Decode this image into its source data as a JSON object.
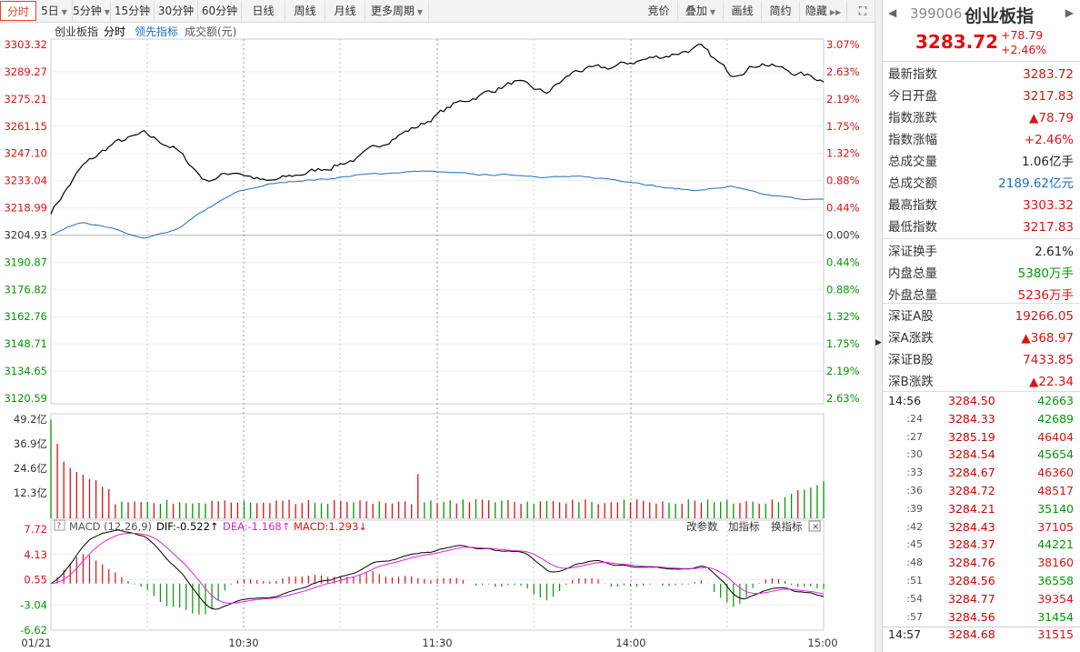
{
  "toolbar": {
    "left_tabs": [
      "分时",
      "5日",
      "5分钟",
      "15分钟",
      "30分钟",
      "60分钟",
      "日线",
      "周线",
      "月线",
      "更多周期"
    ],
    "right_tabs": [
      "竞价",
      "叠加",
      "画线",
      "简约",
      "隐藏"
    ]
  },
  "chart": {
    "legend": {
      "name": "创业板指",
      "mode": "分时",
      "leading": "领先指标",
      "turnover": "成交额(元)"
    },
    "price_ticks": [
      "3303.32",
      "3289.27",
      "3275.21",
      "3261.15",
      "3247.10",
      "3233.04",
      "3218.99",
      "3204.93",
      "3190.87",
      "3176.82",
      "3162.76",
      "3148.71",
      "3134.65",
      "3120.59"
    ],
    "pct_ticks": [
      "3.07%",
      "2.63%",
      "2.19%",
      "1.75%",
      "1.32%",
      "0.88%",
      "0.44%",
      "0.00%",
      "0.44%",
      "0.88%",
      "1.32%",
      "1.75%",
      "2.19%",
      "2.63%"
    ],
    "vol_ticks": [
      "49.2亿",
      "36.9亿",
      "24.6亿",
      "12.3亿"
    ],
    "macd_ticks": [
      "7.72",
      "4.13",
      "0.55",
      "-3.04",
      "-6.62"
    ],
    "macd_header": {
      "name": "MACD (12,26,9)",
      "dif": "DIF:-0.522",
      "dea": "DEA:-1.168",
      "macd": "MACD:1.293",
      "change_params": "改参数",
      "add_indicator": "加指标",
      "switch_indicator": "换指标"
    },
    "time_ticks": [
      "01/21",
      "10:30",
      "11:30",
      "14:00",
      "15:00"
    ],
    "colors": {
      "up": "#d11",
      "down": "#090",
      "price_line": "#000",
      "avg_line": "#1a6fc2",
      "dea_line": "#e020e0"
    }
  },
  "chart_data": {
    "type": "line",
    "title": "创业板指 分时",
    "prev_close": 3204.93,
    "ylim": [
      3120.59,
      3303.32
    ],
    "x": [
      "09:30",
      "10:00",
      "10:30",
      "11:00",
      "11:30",
      "13:30",
      "14:00",
      "14:30",
      "15:00"
    ],
    "series": [
      {
        "name": "创业板指",
        "values": [
          3217.5,
          3257.0,
          3232.0,
          3240.5,
          3278.0,
          3292.0,
          3302.5,
          3290.0,
          3285.0
        ]
      },
      {
        "name": "领先指标",
        "values": [
          3205.0,
          3203.5,
          3227.0,
          3232.5,
          3237.5,
          3235.5,
          3232.0,
          3225.0,
          3223.0
        ]
      }
    ],
    "volume_ylim": [
      0,
      49.2
    ],
    "macd_ylim": [
      -6.62,
      7.72
    ]
  },
  "panel": {
    "code": "399006",
    "name": "创业板指",
    "price": "3283.72",
    "change": "+78.79",
    "change_pct": "+2.46%",
    "rows": [
      {
        "label": "最新指数",
        "value": "3283.72",
        "color": "red"
      },
      {
        "label": "今日开盘",
        "value": "3217.83",
        "color": "red"
      },
      {
        "label": "指数涨跌",
        "value": "▲78.79",
        "color": "red"
      },
      {
        "label": "指数涨幅",
        "value": "+2.46%",
        "color": "red"
      },
      {
        "label": "总成交量",
        "value": "1.06亿手",
        "color": "dark"
      },
      {
        "label": "总成交额",
        "value": "2189.62亿元",
        "color": "blue"
      },
      {
        "label": "最高指数",
        "value": "3303.32",
        "color": "red"
      },
      {
        "label": "最低指数",
        "value": "3217.83",
        "color": "red"
      },
      {
        "label": "深证换手",
        "value": "2.61%",
        "color": "dark"
      },
      {
        "label": "内盘总量",
        "value": "5380万手",
        "color": "green"
      },
      {
        "label": "外盘总量",
        "value": "5236万手",
        "color": "red"
      },
      {
        "label": "深证A股",
        "value": "19266.05",
        "color": "red"
      },
      {
        "label": "深A涨跌",
        "value": "▲368.97",
        "color": "red"
      },
      {
        "label": "深证B股",
        "value": "7433.85",
        "color": "red"
      },
      {
        "label": "深B涨跌",
        "value": "▲22.34",
        "color": "red"
      }
    ],
    "ticks": [
      {
        "time": "14:56",
        "price": "3284.50",
        "vol": "42663",
        "vcolor": "green"
      },
      {
        "time": ":24",
        "price": "3284.33",
        "vol": "42689",
        "vcolor": "green"
      },
      {
        "time": ":27",
        "price": "3285.19",
        "vol": "46404",
        "vcolor": "red"
      },
      {
        "time": ":30",
        "price": "3284.54",
        "vol": "45654",
        "vcolor": "green"
      },
      {
        "time": ":33",
        "price": "3284.67",
        "vol": "46360",
        "vcolor": "red"
      },
      {
        "time": ":36",
        "price": "3284.72",
        "vol": "48517",
        "vcolor": "red"
      },
      {
        "time": ":39",
        "price": "3284.21",
        "vol": "35140",
        "vcolor": "green"
      },
      {
        "time": ":42",
        "price": "3284.43",
        "vol": "37105",
        "vcolor": "red"
      },
      {
        "time": ":45",
        "price": "3284.37",
        "vol": "44221",
        "vcolor": "green"
      },
      {
        "time": ":48",
        "price": "3284.76",
        "vol": "38160",
        "vcolor": "red"
      },
      {
        "time": ":51",
        "price": "3284.56",
        "vol": "36558",
        "vcolor": "green"
      },
      {
        "time": ":54",
        "price": "3284.77",
        "vol": "39354",
        "vcolor": "red"
      },
      {
        "time": ":57",
        "price": "3284.56",
        "vol": "31454",
        "vcolor": "green"
      },
      {
        "time": "14:57",
        "price": "3284.68",
        "vol": "31515",
        "vcolor": "red"
      }
    ]
  }
}
